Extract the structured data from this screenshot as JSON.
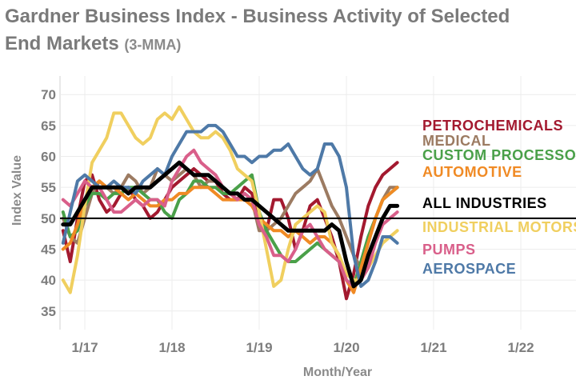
{
  "title": "Gardner Business Index -  Business Activity of Selected",
  "title_line2": "End Markets",
  "subtitle": "(3-MMA)",
  "chart_data": {
    "type": "line",
    "title": "Gardner Business Index -  Business Activity of Selected End Markets",
    "subtitle": "(3-MMA)",
    "xlabel": "Month/Year",
    "ylabel": "Index Value",
    "ylim": [
      32,
      73
    ],
    "yticks": [
      35,
      40,
      45,
      50,
      55,
      60,
      65,
      70
    ],
    "xticks": [
      "1/17",
      "1/18",
      "1/19",
      "1/20",
      "1/21",
      "1/22"
    ],
    "x_start": "2016-10",
    "x_end": "2020-10",
    "reference_line": 50,
    "grid": true,
    "legend_position": "right",
    "series": [
      {
        "name": "PETROCHEMICALS",
        "color": "#a3192f",
        "values": [
          48,
          43,
          50,
          56,
          57,
          53,
          51,
          52,
          54,
          55,
          53,
          52,
          50,
          51,
          53,
          55,
          56,
          57,
          58,
          57,
          56,
          56,
          54,
          53,
          53,
          55,
          54,
          50,
          48,
          53,
          53,
          50,
          45,
          48,
          52,
          53,
          50,
          47,
          43,
          37,
          41,
          47,
          52,
          55,
          57,
          58,
          59
        ]
      },
      {
        "name": "MEDICAL",
        "color": "#9c7b62",
        "values": [
          50,
          47,
          46,
          50,
          54,
          56,
          55,
          54,
          55,
          57,
          56,
          54,
          55,
          58,
          57,
          56,
          57,
          58,
          57,
          55,
          56,
          56,
          55,
          54,
          53,
          54,
          53,
          48,
          48,
          49,
          50,
          52,
          54,
          55,
          56,
          58,
          55,
          52,
          50,
          47,
          44,
          42,
          46,
          50,
          53,
          55,
          55
        ]
      },
      {
        "name": "CUSTOM PROCESSORS",
        "color": "#4aa049",
        "values": [
          51,
          47,
          48,
          52,
          54,
          54,
          53,
          54,
          54,
          55,
          55,
          54,
          53,
          53,
          51,
          50,
          53,
          54,
          56,
          56,
          55,
          55,
          54,
          54,
          55,
          56,
          57,
          51,
          48,
          46,
          44,
          43,
          43,
          44,
          45,
          46,
          45,
          44,
          43,
          40,
          39,
          43,
          47,
          50,
          53,
          54,
          55
        ]
      },
      {
        "name": "AUTOMOTIVE",
        "color": "#f08a24",
        "values": [
          45,
          46,
          49,
          53,
          55,
          56,
          55,
          55,
          54,
          53,
          54,
          53,
          52,
          52,
          53,
          53,
          54,
          54,
          55,
          55,
          55,
          54,
          53,
          53,
          53,
          53,
          52,
          50,
          49,
          48,
          48,
          47,
          48,
          47,
          46,
          47,
          47,
          46,
          44,
          40,
          38,
          42,
          46,
          50,
          53,
          54,
          55
        ]
      },
      {
        "name": "ALL INDUSTRIES",
        "color": "#000000",
        "values": [
          49,
          49,
          51,
          53,
          55,
          55,
          55,
          55,
          55,
          54,
          55,
          55,
          55,
          56,
          57,
          58,
          59,
          58,
          57,
          57,
          57,
          56,
          55,
          54,
          54,
          53,
          53,
          52,
          51,
          50,
          49,
          48,
          48,
          48,
          48,
          48,
          48,
          49,
          48,
          43,
          39,
          40,
          44,
          47,
          50,
          52,
          52
        ]
      },
      {
        "name": "INDUSTRIAL MOTORS",
        "color": "#f0cf5f",
        "values": [
          40,
          38,
          44,
          52,
          59,
          61,
          63,
          67,
          67,
          65,
          63,
          62,
          63,
          66,
          67,
          66,
          68,
          66,
          64,
          63,
          63,
          64,
          63,
          61,
          58,
          57,
          56,
          51,
          45,
          39,
          40,
          45,
          49,
          50,
          51,
          52,
          51,
          46,
          44,
          41,
          40,
          40,
          42,
          44,
          46,
          47,
          48
        ]
      },
      {
        "name": "PUMPS",
        "color": "#d95f8a",
        "values": [
          53,
          52,
          54,
          56,
          55,
          55,
          53,
          51,
          51,
          52,
          53,
          52,
          53,
          53,
          52,
          56,
          58,
          60,
          61,
          59,
          58,
          57,
          55,
          54,
          53,
          54,
          53,
          49,
          47,
          44,
          44,
          43,
          45,
          48,
          49,
          47,
          45,
          44,
          43,
          40,
          39,
          40,
          42,
          46,
          49,
          50,
          51
        ]
      },
      {
        "name": "AEROSPACE",
        "color": "#4e79a7",
        "values": [
          46,
          51,
          56,
          57,
          56,
          55,
          55,
          56,
          55,
          55,
          54,
          56,
          57,
          58,
          57,
          60,
          62,
          64,
          64,
          64,
          65,
          65,
          64,
          62,
          60,
          60,
          59,
          60,
          60,
          61,
          61,
          62,
          60,
          58,
          57,
          58,
          62,
          62,
          60,
          55,
          44,
          39,
          40,
          43,
          47,
          47,
          46
        ]
      }
    ]
  }
}
